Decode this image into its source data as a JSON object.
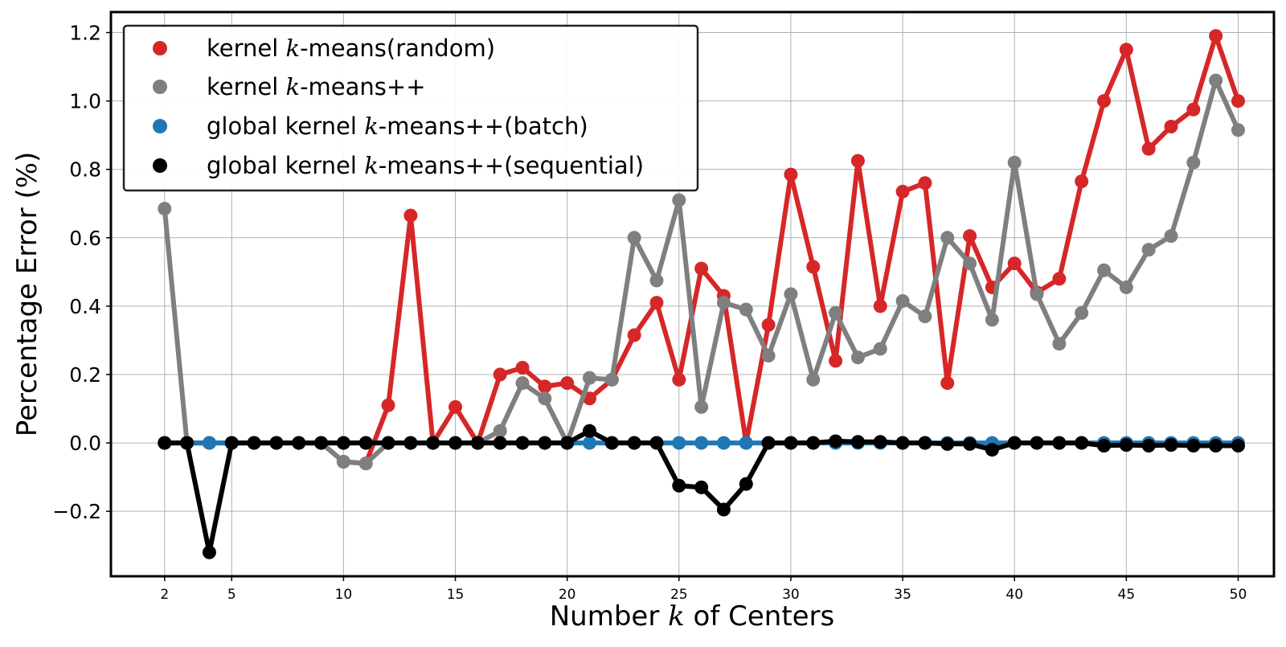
{
  "chart_data": {
    "type": "line",
    "title": "",
    "xlabel_parts": [
      "Number ",
      "k",
      " of Centers"
    ],
    "ylabel_parts": [
      "Percentage Error (",
      "%",
      ")"
    ],
    "xlim": [
      -0.4,
      51.6
    ],
    "ylim": [
      -0.39,
      1.26
    ],
    "x_ticks": [
      2,
      5,
      10,
      15,
      20,
      25,
      30,
      35,
      40,
      45,
      50
    ],
    "x_tick_labels": [
      "2",
      "5",
      "10",
      "15",
      "20",
      "25",
      "30",
      "35",
      "40",
      "45",
      "50"
    ],
    "y_ticks": [
      -0.2,
      0.0,
      0.2,
      0.4,
      0.6,
      0.8,
      1.0,
      1.2
    ],
    "y_tick_labels": [
      "−0.2",
      "0.0",
      "0.2",
      "0.4",
      "0.6",
      "0.8",
      "1.0",
      "1.2"
    ],
    "grid": true,
    "legend_position": "top-left",
    "series": [
      {
        "name": "kernel k-means(random)",
        "name_parts": [
          "kernel ",
          "k",
          "-means(random)"
        ],
        "color": "#d62728",
        "x": [
          2,
          3,
          4,
          5,
          6,
          7,
          8,
          9,
          10,
          11,
          12,
          13,
          14,
          15,
          16,
          17,
          18,
          19,
          20,
          21,
          22,
          23,
          24,
          25,
          26,
          27,
          28,
          29,
          30,
          31,
          32,
          33,
          34,
          35,
          36,
          37,
          38,
          39,
          40,
          41,
          42,
          43,
          44,
          45,
          46,
          47,
          48,
          49,
          50
        ],
        "values": [
          0.0,
          0.0,
          0.0,
          0.0,
          0.0,
          0.0,
          0.0,
          0.0,
          -0.055,
          -0.06,
          0.11,
          0.665,
          0.0,
          0.105,
          0.0,
          0.2,
          0.22,
          0.165,
          0.175,
          0.13,
          0.185,
          0.315,
          0.41,
          0.185,
          0.51,
          0.43,
          0.0,
          0.345,
          0.785,
          0.515,
          0.24,
          0.825,
          0.4,
          0.735,
          0.76,
          0.175,
          0.605,
          0.455,
          0.525,
          0.44,
          0.48,
          0.765,
          1.0,
          1.15,
          0.86,
          0.925,
          0.975,
          1.19,
          1.0
        ]
      },
      {
        "name": "kernel k-means++",
        "name_parts": [
          "kernel ",
          "k",
          "-means++"
        ],
        "color": "#7f7f7f",
        "x": [
          2,
          3,
          4,
          5,
          6,
          7,
          8,
          9,
          10,
          11,
          12,
          13,
          14,
          15,
          16,
          17,
          18,
          19,
          20,
          21,
          22,
          23,
          24,
          25,
          26,
          27,
          28,
          29,
          30,
          31,
          32,
          33,
          34,
          35,
          36,
          37,
          38,
          39,
          40,
          41,
          42,
          43,
          44,
          45,
          46,
          47,
          48,
          49,
          50
        ],
        "values": [
          0.685,
          0.0,
          0.0,
          0.0,
          0.0,
          0.0,
          0.0,
          0.0,
          -0.055,
          -0.06,
          0.0,
          0.0,
          0.0,
          0.0,
          0.0,
          0.035,
          0.175,
          0.13,
          0.0,
          0.19,
          0.185,
          0.6,
          0.475,
          0.71,
          0.105,
          0.41,
          0.39,
          0.255,
          0.435,
          0.185,
          0.38,
          0.25,
          0.275,
          0.415,
          0.37,
          0.6,
          0.525,
          0.36,
          0.82,
          0.435,
          0.29,
          0.38,
          0.505,
          0.455,
          0.565,
          0.605,
          0.82,
          1.06,
          0.915
        ]
      },
      {
        "name": "global kernel k-means++(batch)",
        "name_parts": [
          "global kernel ",
          "k",
          "-means++(batch)"
        ],
        "color": "#1f77b4",
        "x": [
          2,
          3,
          4,
          5,
          6,
          7,
          8,
          9,
          10,
          11,
          12,
          13,
          14,
          15,
          16,
          17,
          18,
          19,
          20,
          21,
          22,
          23,
          24,
          25,
          26,
          27,
          28,
          29,
          30,
          31,
          32,
          33,
          34,
          35,
          36,
          37,
          38,
          39,
          40,
          41,
          42,
          43,
          44,
          45,
          46,
          47,
          48,
          49,
          50
        ],
        "values": [
          0.0,
          0.0,
          0.0,
          0.0,
          0.0,
          0.0,
          0.0,
          0.0,
          0.0,
          0.0,
          0.0,
          0.0,
          0.0,
          0.0,
          0.0,
          0.0,
          0.0,
          0.0,
          0.0,
          0.0,
          0.0,
          0.0,
          0.0,
          0.0,
          0.0,
          0.0,
          0.0,
          0.0,
          0.0,
          0.0,
          0.0,
          0.0,
          0.0,
          0.0,
          0.0,
          0.0,
          0.0,
          0.0,
          0.0,
          0.0,
          0.0,
          0.0,
          0.0,
          0.0,
          0.0,
          0.0,
          0.0,
          0.0,
          0.0
        ]
      },
      {
        "name": "global kernel k-means++(sequential)",
        "name_parts": [
          "global kernel ",
          "k",
          "-means++(sequential)"
        ],
        "color": "#000000",
        "x": [
          2,
          3,
          4,
          5,
          6,
          7,
          8,
          9,
          10,
          11,
          12,
          13,
          14,
          15,
          16,
          17,
          18,
          19,
          20,
          21,
          22,
          23,
          24,
          25,
          26,
          27,
          28,
          29,
          30,
          31,
          32,
          33,
          34,
          35,
          36,
          37,
          38,
          39,
          40,
          41,
          42,
          43,
          44,
          45,
          46,
          47,
          48,
          49,
          50
        ],
        "values": [
          0.0,
          0.0,
          -0.32,
          0.0,
          0.0,
          0.0,
          0.0,
          0.0,
          0.0,
          0.0,
          0.0,
          0.0,
          0.0,
          0.0,
          0.0,
          0.0,
          0.0,
          0.0,
          0.0,
          0.035,
          0.0,
          0.0,
          0.0,
          -0.125,
          -0.13,
          -0.195,
          -0.12,
          0.0,
          0.0,
          0.0,
          0.005,
          0.003,
          0.003,
          0.0,
          0.0,
          -0.003,
          -0.003,
          -0.02,
          0.0,
          0.0,
          0.0,
          0.0,
          -0.008,
          -0.006,
          -0.008,
          -0.006,
          -0.008,
          -0.008,
          -0.008
        ]
      }
    ]
  }
}
